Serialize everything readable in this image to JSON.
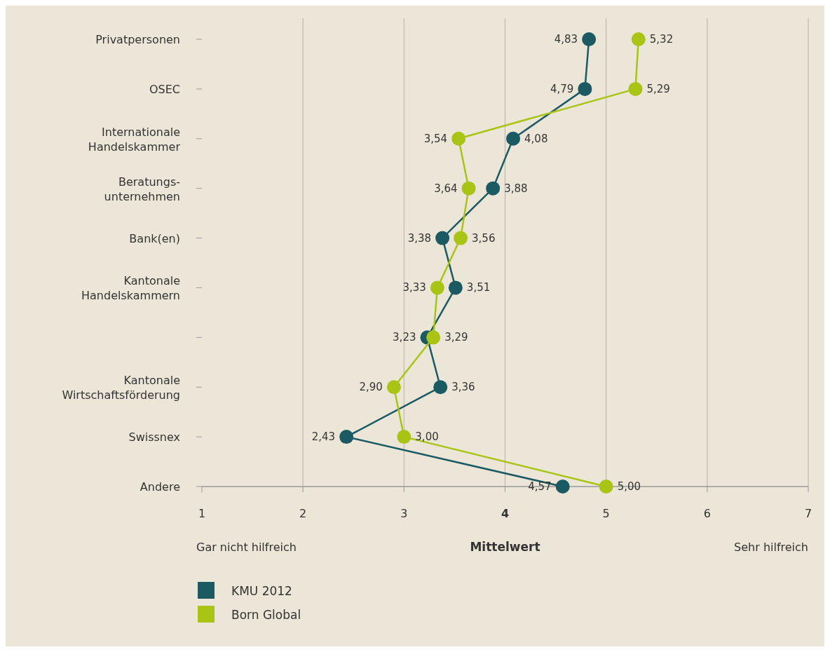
{
  "chart_data": {
    "type": "line",
    "orientation": "horizontal",
    "categories": [
      "Privatpersonen",
      "OSEC",
      "Internationale\nHandelskammer",
      "Beratungs-\nunternehmen",
      "Bank(en)",
      "Kantonale\nHandelskammern",
      null,
      "Kantonale\nWirtschaftsförderung",
      "Swissnex",
      "Andere"
    ],
    "series": [
      {
        "name": "KMU 2012",
        "color": "#1b5963",
        "values": [
          4.83,
          4.79,
          4.08,
          3.88,
          3.38,
          3.51,
          3.23,
          3.36,
          2.43,
          4.57
        ],
        "value_labels": [
          "4,83",
          "4,79",
          "4,08",
          "3,88",
          "3,38",
          "3,51",
          "3,23",
          "3,36",
          "2,43",
          "4,57"
        ]
      },
      {
        "name": "Born Global",
        "color": "#a9c414",
        "values": [
          5.32,
          5.29,
          3.54,
          3.64,
          3.56,
          3.33,
          3.29,
          2.9,
          3.0,
          5.0
        ],
        "value_labels": [
          "5,32",
          "5,29",
          "3,54",
          "3,64",
          "3,56",
          "3,33",
          "3,29",
          "2,90",
          "3,00",
          "5,00"
        ]
      }
    ],
    "xlim": [
      1,
      7
    ],
    "xticks": [
      1,
      2,
      3,
      4,
      5,
      6,
      7
    ],
    "xlabel": "Mittelwert",
    "annotations": [
      "Gar nicht hilfreich",
      "Sehr hilfreich"
    ],
    "grid": "x",
    "marker": "circle",
    "legend": "bottom left"
  }
}
